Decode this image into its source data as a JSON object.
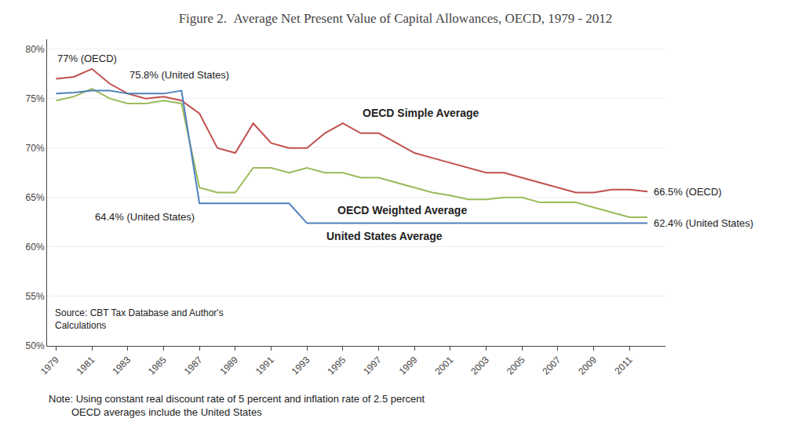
{
  "chart_data": {
    "type": "line",
    "title": "Figure 2.  Average Net Present Value of Capital Allowances, OECD, 1979 - 2012",
    "x": [
      1979,
      1980,
      1981,
      1982,
      1983,
      1984,
      1985,
      1986,
      1987,
      1988,
      1989,
      1990,
      1991,
      1992,
      1993,
      1994,
      1995,
      1996,
      1997,
      1998,
      1999,
      2000,
      2001,
      2002,
      2003,
      2004,
      2005,
      2006,
      2007,
      2008,
      2009,
      2010,
      2011,
      2012
    ],
    "series": [
      {
        "name": "OECD Simple Average",
        "color": "#c0504d",
        "values": [
          77.0,
          77.2,
          78.0,
          76.5,
          75.5,
          75.0,
          75.2,
          74.8,
          73.5,
          70.0,
          69.5,
          72.5,
          70.5,
          70.0,
          70.0,
          71.5,
          72.5,
          71.5,
          71.5,
          70.5,
          69.5,
          69.0,
          68.5,
          68.0,
          67.5,
          67.5,
          67.0,
          66.5,
          66.0,
          65.5,
          65.5,
          65.8,
          65.8,
          65.6
        ]
      },
      {
        "name": "OECD Weighted Average",
        "color": "#9bbb59",
        "values": [
          74.8,
          75.2,
          76.0,
          75.0,
          74.5,
          74.5,
          74.8,
          74.5,
          66.0,
          65.5,
          65.5,
          68.0,
          68.0,
          67.5,
          68.0,
          67.5,
          67.5,
          67.0,
          67.0,
          66.5,
          66.0,
          65.5,
          65.2,
          64.8,
          64.8,
          65.0,
          65.0,
          64.5,
          64.5,
          64.5,
          64.0,
          63.5,
          63.0,
          63.0
        ]
      },
      {
        "name": "United States Average",
        "color": "#4f81bd",
        "values": [
          75.5,
          75.6,
          75.8,
          75.8,
          75.5,
          75.5,
          75.5,
          75.8,
          64.4,
          64.4,
          64.4,
          64.4,
          64.4,
          64.4,
          62.4,
          62.4,
          62.4,
          62.4,
          62.4,
          62.4,
          62.4,
          62.4,
          62.4,
          62.4,
          62.4,
          62.4,
          62.4,
          62.4,
          62.4,
          62.4,
          62.4,
          62.4,
          62.4,
          62.4
        ]
      }
    ],
    "xlim": [
      1978.5,
      2013.0
    ],
    "xticks": [
      1979,
      1981,
      1983,
      1985,
      1987,
      1989,
      1991,
      1993,
      1995,
      1997,
      1999,
      2001,
      2003,
      2005,
      2007,
      2009,
      2011
    ],
    "ylim": [
      50,
      81
    ],
    "yticks": [
      {
        "value": 50,
        "label": "50%"
      },
      {
        "value": 55,
        "label": "55%"
      },
      {
        "value": 60,
        "label": "60%"
      },
      {
        "value": 65,
        "label": "65%"
      },
      {
        "value": 70,
        "label": "70%"
      },
      {
        "value": 75,
        "label": "75%"
      },
      {
        "value": 80,
        "label": "80%"
      }
    ],
    "grid": true,
    "annotations": [
      "77% (OECD)",
      "75.8% (United States)",
      "64.4% (United States)",
      "66.5% (OECD)",
      "62.4% (United States)",
      "Source: CBT Tax Database and Author's\nCalculations",
      "Note: Using constant real discount rate of 5 percent and inflation rate of 2.5 percent\n        OECD averages include the United States"
    ]
  }
}
